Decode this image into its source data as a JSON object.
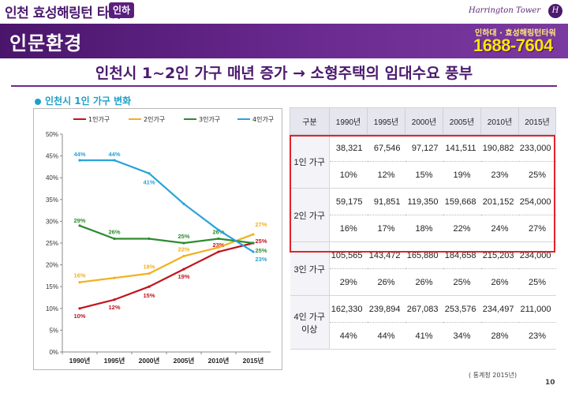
{
  "brand": {
    "title": "인천 효성해링턴 타워",
    "badge": "인하",
    "logo_text": "Harrington Tower",
    "logo_mark": "H"
  },
  "header": {
    "title": "인문환경",
    "sub": "인하대 · 효성해링턴타워",
    "phone": "1688-7604"
  },
  "headline": "인천시 1~2인 가구 매년 증가 → 소형주택의 임대수요 풍부",
  "chart_heading": "인천시 1인 가구 변화",
  "colors": {
    "one": "#c0141e",
    "two": "#f2b01f",
    "three": "#2e8b2e",
    "four": "#29a3d9",
    "accent": "#4b1a6e",
    "highlight": "#e0242a"
  },
  "chart_data": {
    "type": "line",
    "title": "인천시 1인 가구 변화",
    "x": [
      "1990년",
      "1995년",
      "2000년",
      "2005년",
      "2010년",
      "2015년"
    ],
    "ylim": [
      0,
      50
    ],
    "yticks": [
      "0%",
      "5%",
      "10%",
      "15%",
      "20%",
      "25%",
      "30%",
      "35%",
      "40%",
      "45%",
      "50%"
    ],
    "legend_position": "top",
    "series": [
      {
        "name": "1인가구",
        "values": [
          10,
          12,
          15,
          19,
          23,
          25
        ],
        "labels": [
          "10%",
          "12%",
          "15%",
          "19%",
          "23%",
          "25%"
        ],
        "color": "#c0141e"
      },
      {
        "name": "2인가구",
        "values": [
          16,
          17,
          18,
          22,
          24,
          27
        ],
        "labels": [
          "16%",
          "",
          "18%",
          "22%",
          "",
          "27%"
        ],
        "color": "#f2b01f"
      },
      {
        "name": "3인가구",
        "values": [
          29,
          26,
          26,
          25,
          26,
          25
        ],
        "labels": [
          "29%",
          "26%",
          "",
          "25%",
          "26%",
          "25%"
        ],
        "color": "#2e8b2e"
      },
      {
        "name": "4인가구",
        "values": [
          44,
          44,
          41,
          34,
          28,
          23
        ],
        "labels": [
          "44%",
          "44%",
          "41%",
          "",
          "",
          "23%"
        ],
        "color": "#29a3d9"
      }
    ]
  },
  "table": {
    "headers": [
      "구분",
      "1990년",
      "1995년",
      "2000년",
      "2005년",
      "2010년",
      "2015년"
    ],
    "groups": [
      {
        "label": "1인 가구",
        "counts": [
          "38,321",
          "67,546",
          "97,127",
          "141,511",
          "190,882",
          "233,000"
        ],
        "pcts": [
          "10%",
          "12%",
          "15%",
          "19%",
          "23%",
          "25%"
        ]
      },
      {
        "label": "2인 가구",
        "counts": [
          "59,175",
          "91,851",
          "119,350",
          "159,668",
          "201,152",
          "254,000"
        ],
        "pcts": [
          "16%",
          "17%",
          "18%",
          "22%",
          "24%",
          "27%"
        ]
      },
      {
        "label": "3인 가구",
        "counts": [
          "105,565",
          "143,472",
          "165,880",
          "184,658",
          "215,203",
          "234,000"
        ],
        "pcts": [
          "29%",
          "26%",
          "26%",
          "25%",
          "26%",
          "25%"
        ]
      },
      {
        "label": "4인 가구 이상",
        "counts": [
          "162,330",
          "239,894",
          "267,083",
          "253,576",
          "234,497",
          "211,000"
        ],
        "pcts": [
          "44%",
          "44%",
          "41%",
          "34%",
          "28%",
          "23%"
        ]
      }
    ]
  },
  "source": "( 통계청 2015년)",
  "page": "10"
}
